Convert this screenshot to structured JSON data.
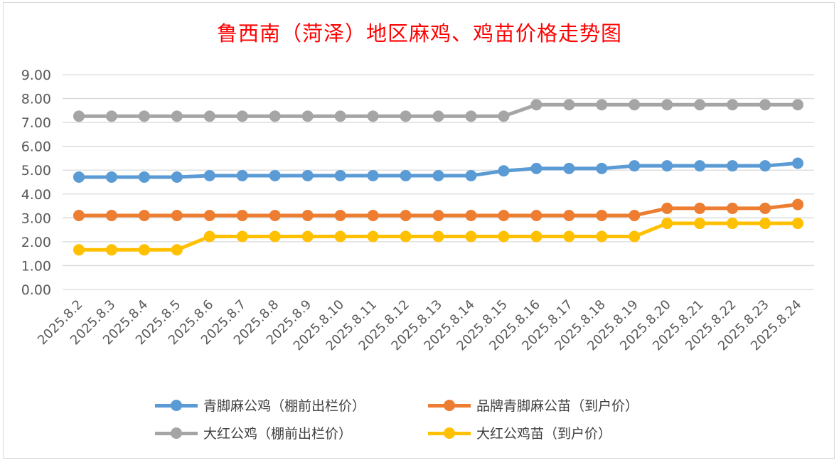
{
  "chart_data": {
    "type": "line",
    "title": "鲁西南（菏泽）地区麻鸡、鸡苗价格走势图",
    "xlabel": "",
    "ylabel": "",
    "ylim": [
      0,
      9
    ],
    "yticks": [
      "0.00",
      "1.00",
      "2.00",
      "3.00",
      "4.00",
      "5.00",
      "6.00",
      "7.00",
      "8.00",
      "9.00"
    ],
    "grid": true,
    "legend_position": "bottom",
    "categories": [
      "2025.8.2",
      "2025.8.3",
      "2025.8.4",
      "2025.8.5",
      "2025.8.6",
      "2025.8.7",
      "2025.8.8",
      "2025.8.9",
      "2025.8.10",
      "2025.8.11",
      "2025.8.12",
      "2025.8.13",
      "2025.8.14",
      "2025.8.15",
      "2025.8.16",
      "2025.8.17",
      "2025.8.18",
      "2025.8.19",
      "2025.8.20",
      "2025.8.21",
      "2025.8.22",
      "2025.8.23",
      "2025.8.24"
    ],
    "series": [
      {
        "name": "青脚麻公鸡（棚前出栏价）",
        "color": "#5b9bd5",
        "values": [
          4.71,
          4.71,
          4.71,
          4.71,
          4.77,
          4.77,
          4.77,
          4.77,
          4.77,
          4.77,
          4.77,
          4.77,
          4.77,
          4.97,
          5.07,
          5.07,
          5.07,
          5.18,
          5.18,
          5.18,
          5.18,
          5.18,
          5.29
        ]
      },
      {
        "name": "品牌青脚麻公苗（到户价）",
        "color": "#ed7d31",
        "values": [
          3.1,
          3.1,
          3.1,
          3.1,
          3.1,
          3.1,
          3.1,
          3.1,
          3.1,
          3.1,
          3.1,
          3.1,
          3.1,
          3.1,
          3.1,
          3.1,
          3.1,
          3.1,
          3.4,
          3.4,
          3.4,
          3.4,
          3.56
        ]
      },
      {
        "name": "大红公鸡（棚前出栏价）",
        "color": "#a5a5a5",
        "values": [
          7.26,
          7.26,
          7.26,
          7.26,
          7.26,
          7.26,
          7.26,
          7.26,
          7.26,
          7.26,
          7.26,
          7.26,
          7.26,
          7.26,
          7.74,
          7.74,
          7.74,
          7.74,
          7.74,
          7.74,
          7.74,
          7.74,
          7.74
        ]
      },
      {
        "name": "大红公鸡苗（到户价）",
        "color": "#ffc000",
        "values": [
          1.66,
          1.66,
          1.66,
          1.66,
          2.22,
          2.22,
          2.22,
          2.22,
          2.22,
          2.22,
          2.22,
          2.22,
          2.22,
          2.22,
          2.22,
          2.22,
          2.22,
          2.22,
          2.77,
          2.77,
          2.77,
          2.77,
          2.77
        ]
      }
    ]
  }
}
